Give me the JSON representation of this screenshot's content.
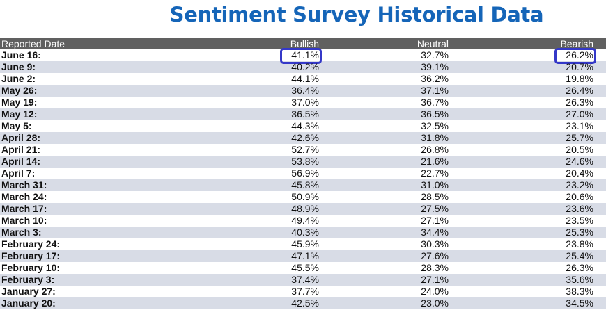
{
  "title": "Sentiment Survey Historical Data",
  "columns": {
    "date": "Reported Date",
    "bullish": "Bullish",
    "neutral": "Neutral",
    "bearish": "Bearish"
  },
  "highlight_color": "#3438c8",
  "header_color": "#606060",
  "title_color": "#1565b8",
  "rows": [
    {
      "date": "June 16:",
      "bullish": "41.1%",
      "neutral": "32.7%",
      "bearish": "26.2%"
    },
    {
      "date": "June 9:",
      "bullish": "40.2%",
      "neutral": "39.1%",
      "bearish": "20.7%"
    },
    {
      "date": "June 2:",
      "bullish": "44.1%",
      "neutral": "36.2%",
      "bearish": "19.8%"
    },
    {
      "date": "May 26:",
      "bullish": "36.4%",
      "neutral": "37.1%",
      "bearish": "26.4%"
    },
    {
      "date": "May 19:",
      "bullish": "37.0%",
      "neutral": "36.7%",
      "bearish": "26.3%"
    },
    {
      "date": "May 12:",
      "bullish": "36.5%",
      "neutral": "36.5%",
      "bearish": "27.0%"
    },
    {
      "date": "May 5:",
      "bullish": "44.3%",
      "neutral": "32.5%",
      "bearish": "23.1%"
    },
    {
      "date": "April 28:",
      "bullish": "42.6%",
      "neutral": "31.8%",
      "bearish": "25.7%"
    },
    {
      "date": "April 21:",
      "bullish": "52.7%",
      "neutral": "26.8%",
      "bearish": "20.5%"
    },
    {
      "date": "April 14:",
      "bullish": "53.8%",
      "neutral": "21.6%",
      "bearish": "24.6%"
    },
    {
      "date": "April 7:",
      "bullish": "56.9%",
      "neutral": "22.7%",
      "bearish": "20.4%"
    },
    {
      "date": "March 31:",
      "bullish": "45.8%",
      "neutral": "31.0%",
      "bearish": "23.2%"
    },
    {
      "date": "March 24:",
      "bullish": "50.9%",
      "neutral": "28.5%",
      "bearish": "20.6%"
    },
    {
      "date": "March 17:",
      "bullish": "48.9%",
      "neutral": "27.5%",
      "bearish": "23.6%"
    },
    {
      "date": "March 10:",
      "bullish": "49.4%",
      "neutral": "27.1%",
      "bearish": "23.5%"
    },
    {
      "date": "March 3:",
      "bullish": "40.3%",
      "neutral": "34.4%",
      "bearish": "25.3%"
    },
    {
      "date": "February 24:",
      "bullish": "45.9%",
      "neutral": "30.3%",
      "bearish": "23.8%"
    },
    {
      "date": "February 17:",
      "bullish": "47.1%",
      "neutral": "27.6%",
      "bearish": "25.4%"
    },
    {
      "date": "February 10:",
      "bullish": "45.5%",
      "neutral": "28.3%",
      "bearish": "26.3%"
    },
    {
      "date": "February 3:",
      "bullish": "37.4%",
      "neutral": "27.1%",
      "bearish": "35.6%"
    },
    {
      "date": "January 27:",
      "bullish": "37.7%",
      "neutral": "24.0%",
      "bearish": "38.3%"
    },
    {
      "date": "January 20:",
      "bullish": "42.5%",
      "neutral": "23.0%",
      "bearish": "34.5%"
    }
  ]
}
